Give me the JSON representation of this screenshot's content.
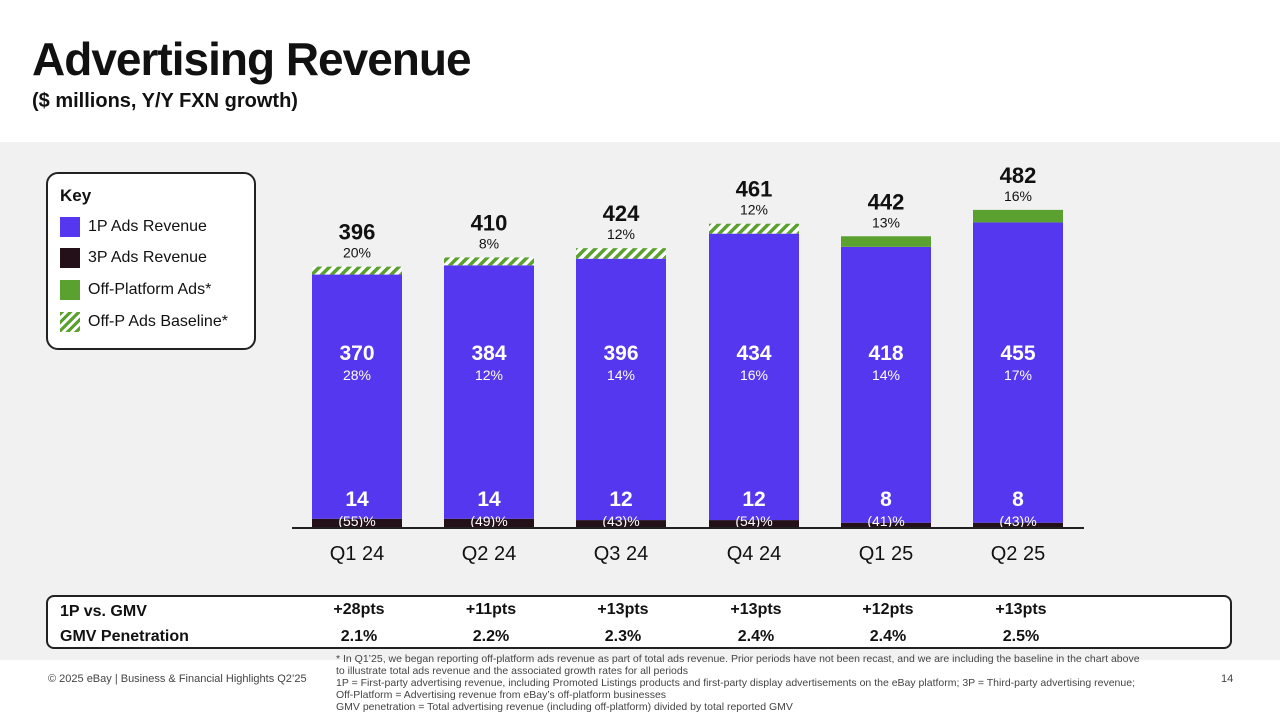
{
  "header": {
    "title": "Advertising Revenue",
    "subtitle": "($ millions, Y/Y FXN growth)"
  },
  "key": {
    "title": "Key",
    "items": [
      {
        "label": "1P Ads Revenue",
        "color": "#5637f0"
      },
      {
        "label": "3P Ads Revenue",
        "color": "#231018"
      },
      {
        "label": "Off-Platform Ads*",
        "color": "#5aa12f"
      },
      {
        "label": "Off-P Ads Baseline*",
        "color": "#5aa12f"
      }
    ]
  },
  "chart_data": {
    "type": "bar",
    "stacked": true,
    "categories": [
      "Q1 24",
      "Q2 24",
      "Q3 24",
      "Q4 24",
      "Q1 25",
      "Q2 25"
    ],
    "series": [
      {
        "name": "3P Ads Revenue",
        "values": [
          14,
          14,
          12,
          12,
          8,
          8
        ],
        "growth": [
          "(55)%",
          "(49)%",
          "(43)%",
          "(54)%",
          "(41)%",
          "(43)%"
        ],
        "color": "#231018"
      },
      {
        "name": "1P Ads Revenue",
        "values": [
          370,
          384,
          396,
          434,
          418,
          455
        ],
        "growth": [
          "28%",
          "12%",
          "14%",
          "16%",
          "14%",
          "17%"
        ],
        "color": "#5637f0"
      },
      {
        "name": "Off-P Ads Baseline*",
        "values": [
          12,
          12,
          16,
          15,
          0,
          0
        ],
        "color": "#5aa12f",
        "pattern": "hatched"
      },
      {
        "name": "Off-Platform Ads*",
        "values": [
          0,
          0,
          0,
          0,
          16,
          19
        ],
        "color": "#5aa12f"
      }
    ],
    "totals": [
      396,
      410,
      424,
      461,
      442,
      482
    ],
    "total_growth": [
      "20%",
      "8%",
      "12%",
      "12%",
      "13%",
      "16%"
    ],
    "title": "Advertising Revenue",
    "ylabel": "$ millions",
    "ylim": [
      0,
      500
    ]
  },
  "gmv": {
    "label_1p": "1P vs. GMV",
    "label_pen": "GMV Penetration",
    "pts": [
      "+28pts",
      "+11pts",
      "+13pts",
      "+13pts",
      "+12pts",
      "+13pts"
    ],
    "penetration": [
      "2.1%",
      "2.2%",
      "2.3%",
      "2.4%",
      "2.4%",
      "2.5%"
    ]
  },
  "footer": {
    "copyright": "© 2025 eBay | Business & Financial Highlights Q2’25",
    "page": "14",
    "notes": [
      "* In Q1’25, we began reporting off-platform ads revenue as part of total ads revenue. Prior periods have not been recast, and we are including the baseline in the chart above",
      "to illustrate total ads revenue and the associated growth rates for all periods",
      "1P = First-party advertising revenue, including Promoted Listings products and first-party display advertisements on the eBay platform; 3P = Third-party advertising revenue;",
      "Off-Platform = Advertising revenue from eBay’s off-platform businesses",
      "GMV penetration = Total advertising revenue (including off-platform) divided by total reported GMV"
    ]
  }
}
